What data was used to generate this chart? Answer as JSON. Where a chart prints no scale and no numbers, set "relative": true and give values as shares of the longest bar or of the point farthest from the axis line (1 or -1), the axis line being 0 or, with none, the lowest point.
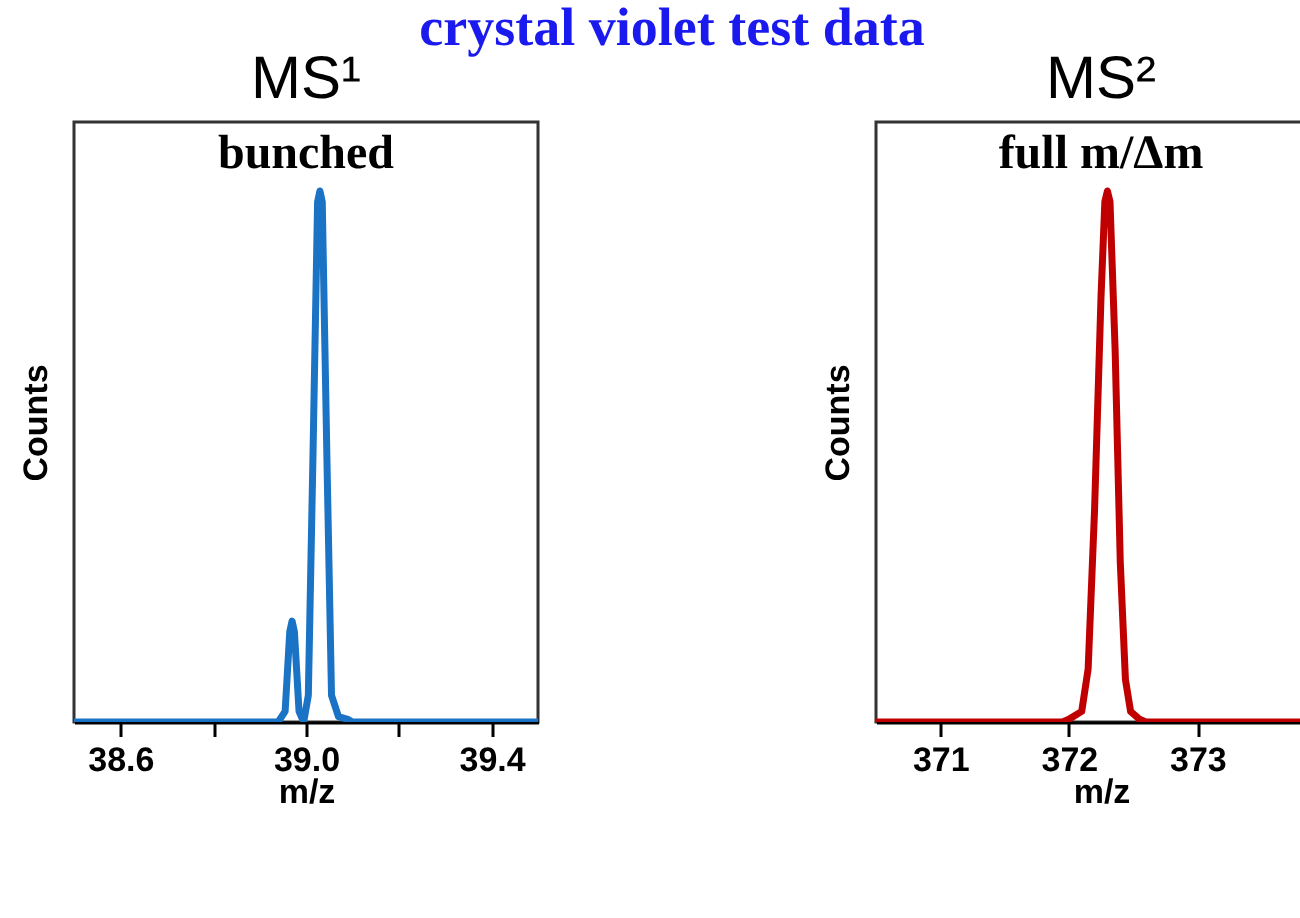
{
  "chart_data": [
    {
      "type": "other",
      "title": "crystal violet test data"
    },
    {
      "type": "line",
      "title": "MS¹",
      "xlabel": "m/z",
      "ylabel": "Counts",
      "annotations": [
        "bunched"
      ],
      "relative": true,
      "xlim": [
        38.5,
        39.5
      ],
      "xticks": [
        38.6,
        {
          "value": 38.8,
          "label": null
        },
        {
          "value": 39,
          "label": "39.0"
        },
        {
          "value": 39.2,
          "label": null
        },
        39.4
      ],
      "x": [
        38.5,
        38.94,
        38.955,
        38.965,
        38.97,
        38.975,
        38.985,
        38.995,
        39.005,
        39.015,
        39.025,
        39.03,
        39.035,
        39.045,
        39.055,
        39.07,
        39.09,
        39.1,
        39.5
      ],
      "series": [
        {
          "color": "#1a73c4",
          "values": [
            0,
            0,
            0.02,
            0.17,
            0.19,
            0.17,
            0.02,
            0,
            0.05,
            0.5,
            0.98,
            1,
            0.98,
            0.5,
            0.05,
            0.01,
            0.005,
            0,
            0
          ]
        }
      ]
    },
    {
      "type": "line",
      "title": "MS²",
      "xlabel": "m/z",
      "ylabel": "Counts",
      "annotations": [
        "full m/Δm"
      ],
      "relative": true,
      "xlim": [
        370.5,
        374
      ],
      "xticks": [
        371,
        372,
        373
      ],
      "x": [
        370.5,
        371.95,
        372,
        372.1,
        372.15,
        372.2,
        372.25,
        372.28,
        372.3,
        372.32,
        372.36,
        372.4,
        372.44,
        372.48,
        372.55,
        372.6,
        374
      ],
      "series": [
        {
          "color": "#c00000",
          "values": [
            0,
            0,
            0.005,
            0.02,
            0.1,
            0.4,
            0.8,
            0.98,
            1,
            0.98,
            0.7,
            0.3,
            0.08,
            0.02,
            0.005,
            0,
            0
          ]
        }
      ]
    }
  ]
}
